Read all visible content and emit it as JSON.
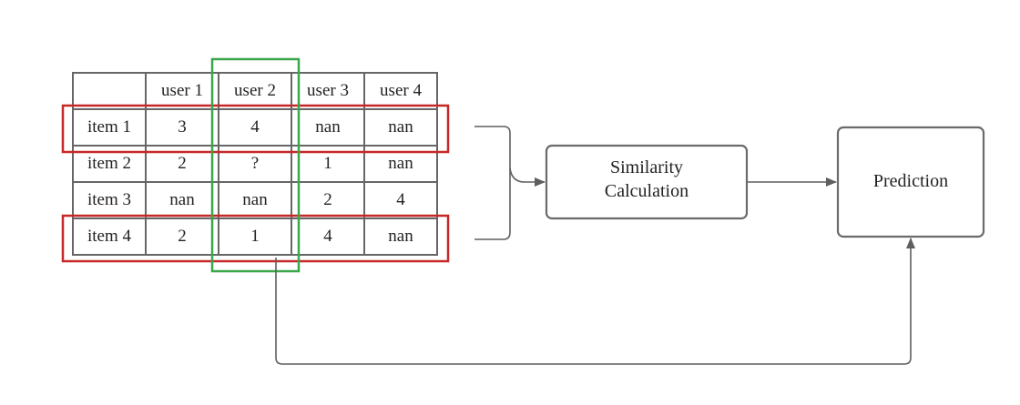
{
  "matrix": {
    "column_headers": [
      "",
      "user 1",
      "user 2",
      "user 3",
      "user 4"
    ],
    "rows": [
      [
        "item 1",
        "3",
        "4",
        "nan",
        "nan"
      ],
      [
        "item 2",
        "2",
        "?",
        "1",
        "nan"
      ],
      [
        "item 3",
        "nan",
        "nan",
        "2",
        "4"
      ],
      [
        "item 4",
        "2",
        "1",
        "4",
        "nan"
      ]
    ],
    "highlighted_rows": [
      "item 1",
      "item 4"
    ],
    "highlighted_column": "user 2",
    "missing_value_color": "#b5523b",
    "row_highlight_color": "#c62828",
    "column_highlight_color": "#3aa64a",
    "grid_color": "#666666"
  },
  "nodes": {
    "similarity": {
      "line1": "Similarity",
      "line2": "Calculation"
    },
    "prediction": {
      "label": "Prediction"
    }
  },
  "colors": {
    "connector": "#5f5f5f",
    "box_border": "#6a6a6a",
    "text": "#222222"
  }
}
